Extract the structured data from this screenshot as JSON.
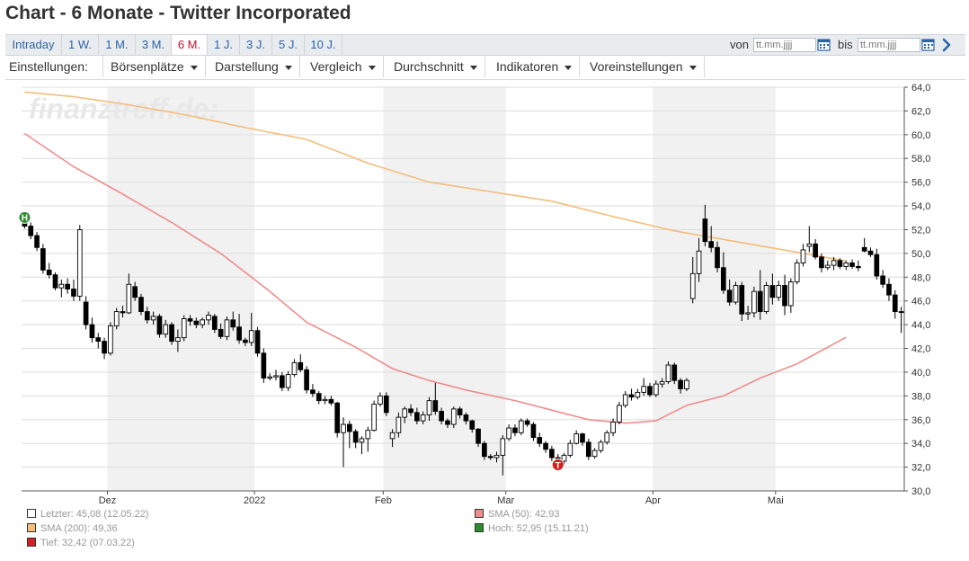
{
  "page": {
    "title": "Chart - 6 Monate - Twitter Incorporated"
  },
  "tabs": [
    {
      "label": "Intraday"
    },
    {
      "label": "1 W."
    },
    {
      "label": "1 M."
    },
    {
      "label": "3 M."
    },
    {
      "label": "6 M.",
      "active": true
    },
    {
      "label": "1 J."
    },
    {
      "label": "3 J."
    },
    {
      "label": "5 J."
    },
    {
      "label": "10 J."
    }
  ],
  "range": {
    "from_label": "von",
    "to_label": "bis",
    "from_placeholder": "tt.mm.jjjj",
    "to_placeholder": "tt.mm.jjjj"
  },
  "menu": {
    "settings_label": "Einstellungen:",
    "items": [
      "Börsenplätze",
      "Darstellung",
      "Vergleich",
      "Durchschnitt",
      "Indikatoren",
      "Voreinstellungen"
    ]
  },
  "chart_data": {
    "type": "candlestick",
    "watermark": "finanztreff.de:",
    "ylim": [
      30,
      64
    ],
    "y_ticks": [
      "30,0",
      "32,0",
      "34,0",
      "36,0",
      "38,0",
      "40,0",
      "42,0",
      "44,0",
      "46,0",
      "48,0",
      "50,0",
      "52,0",
      "54,0",
      "56,0",
      "58,0",
      "60,0",
      "62,0",
      "64,0"
    ],
    "x_ticks": [
      {
        "label": "Dez",
        "i": 14
      },
      {
        "label": "2022",
        "i": 38
      },
      {
        "label": "Feb",
        "i": 59
      },
      {
        "label": "Mar",
        "i": 79
      },
      {
        "label": "Apr",
        "i": 103
      },
      {
        "label": "Mai",
        "i": 123
      }
    ],
    "shaded_bands": [
      [
        14,
        38
      ],
      [
        59,
        79
      ],
      [
        103,
        123
      ]
    ],
    "colors": {
      "up_fill": "#ffffff",
      "down_fill": "#000000",
      "wick": "#000000",
      "sma50": "#f08c8c",
      "sma200": "#f5bd7a",
      "high_marker": "#2e8b2e",
      "low_marker": "#d42020",
      "band": "#f1f1f1",
      "grid": "#dcdcdc"
    },
    "candles": [
      [
        52.6,
        53.0,
        52.1,
        52.3
      ],
      [
        52.3,
        52.6,
        51.2,
        51.5
      ],
      [
        51.5,
        51.8,
        50.2,
        50.5
      ],
      [
        50.4,
        50.8,
        48.3,
        48.6
      ],
      [
        48.6,
        49.2,
        47.9,
        48.2
      ],
      [
        48.2,
        48.4,
        46.9,
        47.1
      ],
      [
        47.1,
        47.8,
        46.3,
        47.4
      ],
      [
        47.4,
        47.9,
        46.6,
        47.0
      ],
      [
        47.0,
        47.8,
        46.0,
        46.4
      ],
      [
        46.4,
        52.4,
        46.0,
        52.0
      ],
      [
        45.9,
        46.4,
        43.6,
        44.0
      ],
      [
        44.0,
        44.6,
        42.5,
        42.9
      ],
      [
        42.9,
        43.3,
        42.0,
        42.6
      ],
      [
        42.6,
        42.9,
        41.1,
        41.6
      ],
      [
        41.6,
        44.2,
        41.4,
        43.9
      ],
      [
        43.9,
        45.4,
        43.6,
        45.1
      ],
      [
        45.1,
        45.6,
        44.6,
        45.0
      ],
      [
        45.0,
        48.3,
        44.9,
        47.4
      ],
      [
        47.2,
        47.6,
        46.0,
        46.3
      ],
      [
        46.3,
        46.6,
        44.8,
        45.1
      ],
      [
        45.1,
        45.5,
        44.1,
        44.4
      ],
      [
        44.4,
        45.1,
        44.0,
        44.7
      ],
      [
        44.7,
        44.9,
        42.9,
        43.2
      ],
      [
        43.2,
        44.4,
        42.9,
        44.0
      ],
      [
        44.0,
        44.2,
        42.3,
        42.6
      ],
      [
        42.6,
        43.6,
        41.7,
        42.9
      ],
      [
        42.9,
        44.8,
        42.6,
        44.5
      ],
      [
        44.5,
        44.8,
        43.9,
        44.3
      ],
      [
        44.3,
        44.6,
        43.7,
        44.0
      ],
      [
        44.0,
        44.6,
        43.7,
        44.4
      ],
      [
        44.4,
        45.1,
        44.0,
        44.8
      ],
      [
        44.7,
        44.9,
        43.3,
        43.6
      ],
      [
        43.6,
        44.1,
        42.8,
        43.0
      ],
      [
        43.0,
        44.7,
        42.7,
        44.4
      ],
      [
        44.4,
        45.1,
        43.5,
        43.8
      ],
      [
        43.8,
        44.9,
        42.4,
        42.7
      ],
      [
        42.7,
        42.9,
        42.2,
        42.5
      ],
      [
        42.5,
        45.0,
        42.2,
        43.5
      ],
      [
        43.5,
        43.8,
        41.3,
        41.6
      ],
      [
        41.6,
        42.0,
        39.1,
        39.5
      ],
      [
        39.5,
        39.9,
        39.3,
        39.6
      ],
      [
        39.6,
        40.2,
        39.3,
        39.7
      ],
      [
        39.7,
        40.0,
        38.4,
        38.7
      ],
      [
        38.7,
        40.1,
        38.4,
        39.8
      ],
      [
        39.8,
        41.1,
        39.6,
        40.8
      ],
      [
        40.8,
        41.5,
        40.0,
        40.2
      ],
      [
        40.2,
        40.5,
        38.2,
        38.5
      ],
      [
        38.5,
        39.0,
        37.9,
        38.2
      ],
      [
        38.2,
        38.4,
        37.3,
        37.6
      ],
      [
        37.6,
        38.0,
        37.3,
        37.7
      ],
      [
        37.7,
        38.0,
        37.2,
        37.4
      ],
      [
        37.4,
        37.5,
        34.5,
        34.9
      ],
      [
        34.9,
        36.2,
        32.0,
        35.6
      ],
      [
        35.6,
        35.9,
        33.6,
        35.0
      ],
      [
        35.0,
        35.2,
        33.6,
        34.1
      ],
      [
        34.1,
        34.6,
        33.1,
        34.4
      ],
      [
        34.4,
        35.4,
        33.3,
        35.1
      ],
      [
        35.1,
        37.6,
        35.0,
        37.3
      ],
      [
        37.3,
        38.3,
        37.1,
        38.0
      ],
      [
        38.0,
        38.3,
        36.3,
        36.6
      ],
      [
        34.4,
        35.2,
        33.7,
        34.9
      ],
      [
        34.9,
        36.6,
        34.5,
        36.2
      ],
      [
        36.2,
        37.1,
        35.7,
        36.9
      ],
      [
        36.9,
        37.3,
        36.3,
        36.6
      ],
      [
        36.6,
        37.0,
        35.6,
        35.9
      ],
      [
        35.9,
        36.7,
        35.6,
        36.4
      ],
      [
        36.4,
        37.9,
        35.9,
        37.6
      ],
      [
        37.6,
        39.1,
        36.4,
        36.7
      ],
      [
        36.7,
        37.0,
        35.6,
        35.9
      ],
      [
        35.9,
        36.1,
        35.3,
        35.6
      ],
      [
        35.6,
        37.1,
        35.3,
        36.9
      ],
      [
        36.9,
        37.1,
        36.1,
        36.4
      ],
      [
        36.4,
        36.6,
        35.6,
        35.9
      ],
      [
        35.9,
        36.0,
        34.9,
        35.2
      ],
      [
        35.2,
        35.3,
        33.7,
        34.0
      ],
      [
        34.0,
        34.2,
        32.6,
        32.9
      ],
      [
        32.9,
        33.1,
        32.6,
        32.8
      ],
      [
        32.8,
        33.3,
        32.4,
        33.0
      ],
      [
        33.0,
        34.7,
        31.3,
        34.4
      ],
      [
        34.4,
        35.6,
        34.2,
        35.3
      ],
      [
        35.3,
        35.6,
        34.6,
        34.9
      ],
      [
        34.9,
        36.1,
        34.7,
        35.9
      ],
      [
        35.9,
        36.1,
        35.4,
        35.6
      ],
      [
        35.6,
        35.8,
        34.2,
        34.5
      ],
      [
        34.5,
        34.9,
        33.7,
        34.0
      ],
      [
        34.0,
        34.2,
        33.2,
        33.5
      ],
      [
        33.5,
        33.8,
        32.5,
        32.8
      ],
      [
        32.8,
        33.1,
        32.2,
        32.5
      ],
      [
        32.5,
        33.2,
        32.2,
        33.0
      ],
      [
        33.0,
        34.3,
        32.8,
        34.0
      ],
      [
        34.0,
        35.1,
        33.9,
        34.8
      ],
      [
        34.8,
        34.9,
        33.8,
        34.1
      ],
      [
        34.1,
        34.4,
        32.6,
        32.9
      ],
      [
        32.9,
        33.6,
        32.7,
        33.4
      ],
      [
        33.4,
        34.3,
        33.2,
        34.1
      ],
      [
        34.1,
        35.1,
        33.9,
        34.9
      ],
      [
        34.9,
        36.1,
        34.6,
        35.8
      ],
      [
        35.8,
        37.5,
        35.6,
        37.2
      ],
      [
        37.2,
        38.4,
        37.0,
        38.1
      ],
      [
        38.1,
        38.6,
        37.6,
        37.9
      ],
      [
        37.9,
        38.6,
        37.7,
        38.3
      ],
      [
        38.3,
        39.5,
        38.0,
        38.8
      ],
      [
        38.8,
        39.1,
        37.9,
        38.1
      ],
      [
        38.1,
        39.3,
        37.9,
        39.0
      ],
      [
        39.0,
        39.5,
        38.7,
        39.2
      ],
      [
        39.2,
        40.9,
        39.0,
        40.6
      ],
      [
        40.6,
        40.8,
        39.0,
        39.3
      ],
      [
        39.3,
        39.5,
        38.2,
        38.6
      ],
      [
        38.6,
        39.5,
        38.4,
        39.3
      ],
      [
        46.2,
        49.7,
        45.8,
        48.3
      ],
      [
        48.3,
        51.3,
        47.6,
        50.2
      ],
      [
        52.9,
        54.1,
        50.6,
        51.0
      ],
      [
        51.0,
        52.3,
        50.1,
        50.5
      ],
      [
        50.5,
        51.0,
        48.4,
        48.8
      ],
      [
        48.8,
        50.1,
        46.6,
        46.9
      ],
      [
        46.9,
        47.8,
        45.6,
        45.9
      ],
      [
        45.9,
        47.6,
        45.7,
        47.3
      ],
      [
        47.3,
        47.6,
        44.3,
        44.9
      ],
      [
        44.9,
        45.6,
        44.4,
        45.0
      ],
      [
        45.0,
        47.2,
        44.6,
        46.8
      ],
      [
        46.8,
        48.6,
        44.4,
        45.1
      ],
      [
        45.1,
        47.6,
        44.9,
        47.3
      ],
      [
        47.3,
        48.3,
        45.7,
        46.3
      ],
      [
        46.3,
        47.7,
        46.0,
        47.3
      ],
      [
        47.3,
        48.2,
        44.8,
        45.6
      ],
      [
        45.6,
        47.9,
        45.0,
        47.6
      ],
      [
        47.6,
        49.5,
        47.4,
        49.2
      ],
      [
        49.2,
        50.8,
        48.9,
        50.3
      ],
      [
        50.6,
        52.3,
        50.1,
        50.8
      ],
      [
        50.8,
        51.2,
        49.5,
        49.7
      ],
      [
        49.7,
        50.0,
        48.4,
        48.8
      ],
      [
        48.8,
        49.4,
        48.6,
        49.0
      ],
      [
        49.0,
        49.7,
        48.6,
        49.4
      ],
      [
        49.4,
        49.6,
        48.7,
        48.9
      ],
      [
        48.9,
        49.4,
        48.6,
        49.2
      ],
      [
        49.2,
        49.5,
        48.7,
        48.9
      ],
      [
        48.9,
        49.4,
        48.5,
        48.8
      ],
      [
        50.5,
        51.3,
        50.1,
        50.2
      ],
      [
        50.2,
        50.5,
        49.7,
        49.9
      ],
      [
        49.9,
        50.4,
        47.8,
        48.1
      ],
      [
        48.1,
        48.6,
        47.1,
        47.4
      ],
      [
        47.4,
        47.9,
        46.0,
        46.5
      ],
      [
        46.5,
        46.9,
        44.5,
        45.1
      ],
      [
        45.1,
        45.5,
        43.3,
        45.08
      ]
    ],
    "sma50": [
      [
        0,
        60.1
      ],
      [
        8,
        57.3
      ],
      [
        16,
        55.0
      ],
      [
        24,
        52.6
      ],
      [
        32,
        50.0
      ],
      [
        40,
        46.8
      ],
      [
        46,
        44.2
      ],
      [
        54,
        42.1
      ],
      [
        60,
        40.3
      ],
      [
        66,
        39.3
      ],
      [
        72,
        38.5
      ],
      [
        80,
        37.6
      ],
      [
        86,
        36.8
      ],
      [
        92,
        36.0
      ],
      [
        98,
        35.7
      ],
      [
        103,
        35.9
      ],
      [
        108,
        37.2
      ],
      [
        114,
        38.0
      ],
      [
        120,
        39.5
      ],
      [
        126,
        40.7
      ],
      [
        134,
        42.93
      ]
    ],
    "sma200": [
      [
        0,
        63.6
      ],
      [
        8,
        63.2
      ],
      [
        16,
        62.6
      ],
      [
        26,
        61.7
      ],
      [
        36,
        60.6
      ],
      [
        46,
        59.6
      ],
      [
        56,
        57.6
      ],
      [
        66,
        56.0
      ],
      [
        76,
        55.2
      ],
      [
        86,
        54.4
      ],
      [
        96,
        53.1
      ],
      [
        106,
        51.9
      ],
      [
        116,
        51.0
      ],
      [
        126,
        50.1
      ],
      [
        134,
        49.36
      ]
    ],
    "high_marker": {
      "i": 0,
      "value": 52.95,
      "glyph": "H"
    },
    "low_marker": {
      "i": 87,
      "value": 32.42,
      "glyph": "T"
    },
    "legend": [
      {
        "label": "Letzter: 45,08 (12.05.22)",
        "color": "#ffffff"
      },
      {
        "label": "SMA (50): 42,93",
        "color": "#f08c8c"
      },
      {
        "label": "SMA (200): 49,36",
        "color": "#f5bd7a"
      },
      {
        "label": "Hoch: 52,95 (15.11.21)",
        "color": "#2e8b2e"
      },
      {
        "label": "Tief: 32,42 (07.03.22)",
        "color": "#d42020"
      }
    ]
  }
}
